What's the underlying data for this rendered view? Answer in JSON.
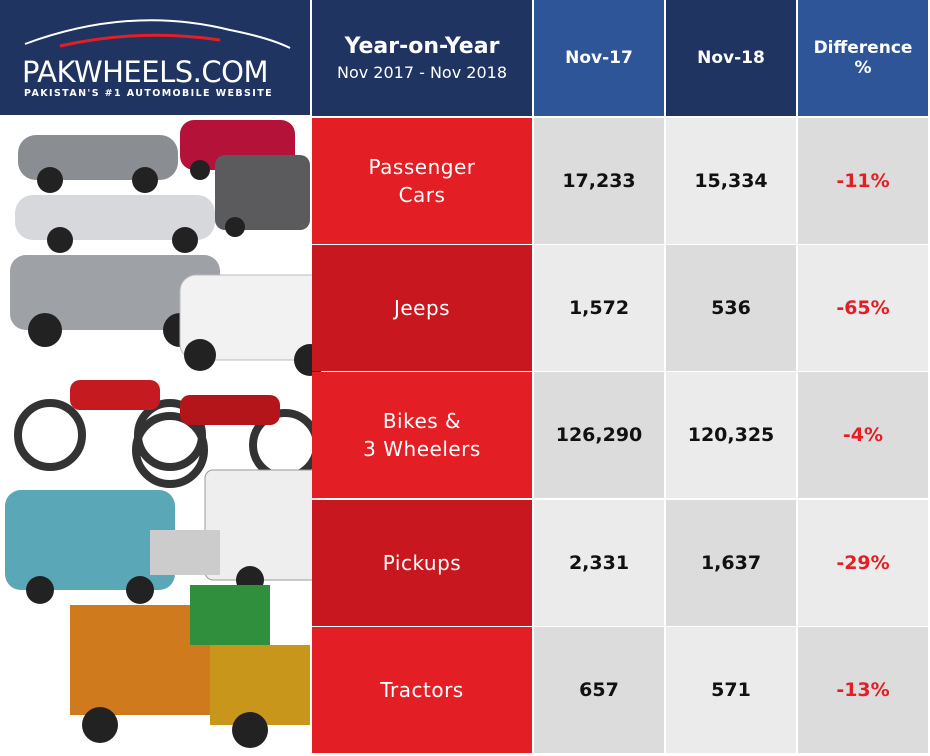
{
  "logo": {
    "title": "PAKWHEELS.COM",
    "tagline": "PAKISTAN'S #1 AUTOMOBILE WEBSITE"
  },
  "table": {
    "header": {
      "title": "Year-on-Year",
      "subtitle": "Nov 2017 - Nov 2018",
      "columns": [
        "Nov-17",
        "Nov-18"
      ],
      "difference": [
        "Difference",
        "%"
      ]
    },
    "rows": [
      {
        "label": [
          "Passenger",
          "Cars"
        ],
        "nov17": "17,233",
        "nov18": "15,334",
        "difference": "-11%"
      },
      {
        "label": [
          "Jeeps"
        ],
        "nov17": "1,572",
        "nov18": "536",
        "difference": "-65%"
      },
      {
        "label": [
          "Bikes &",
          "3 Wheelers"
        ],
        "nov17": "126,290",
        "nov18": "120,325",
        "difference": "-4%"
      },
      {
        "label": [
          "Pickups"
        ],
        "nov17": "2,331",
        "nov18": "1,637",
        "difference": "-29%"
      },
      {
        "label": [
          "Tractors"
        ],
        "nov17": "657",
        "nov18": "571",
        "difference": "-13%"
      }
    ]
  }
}
